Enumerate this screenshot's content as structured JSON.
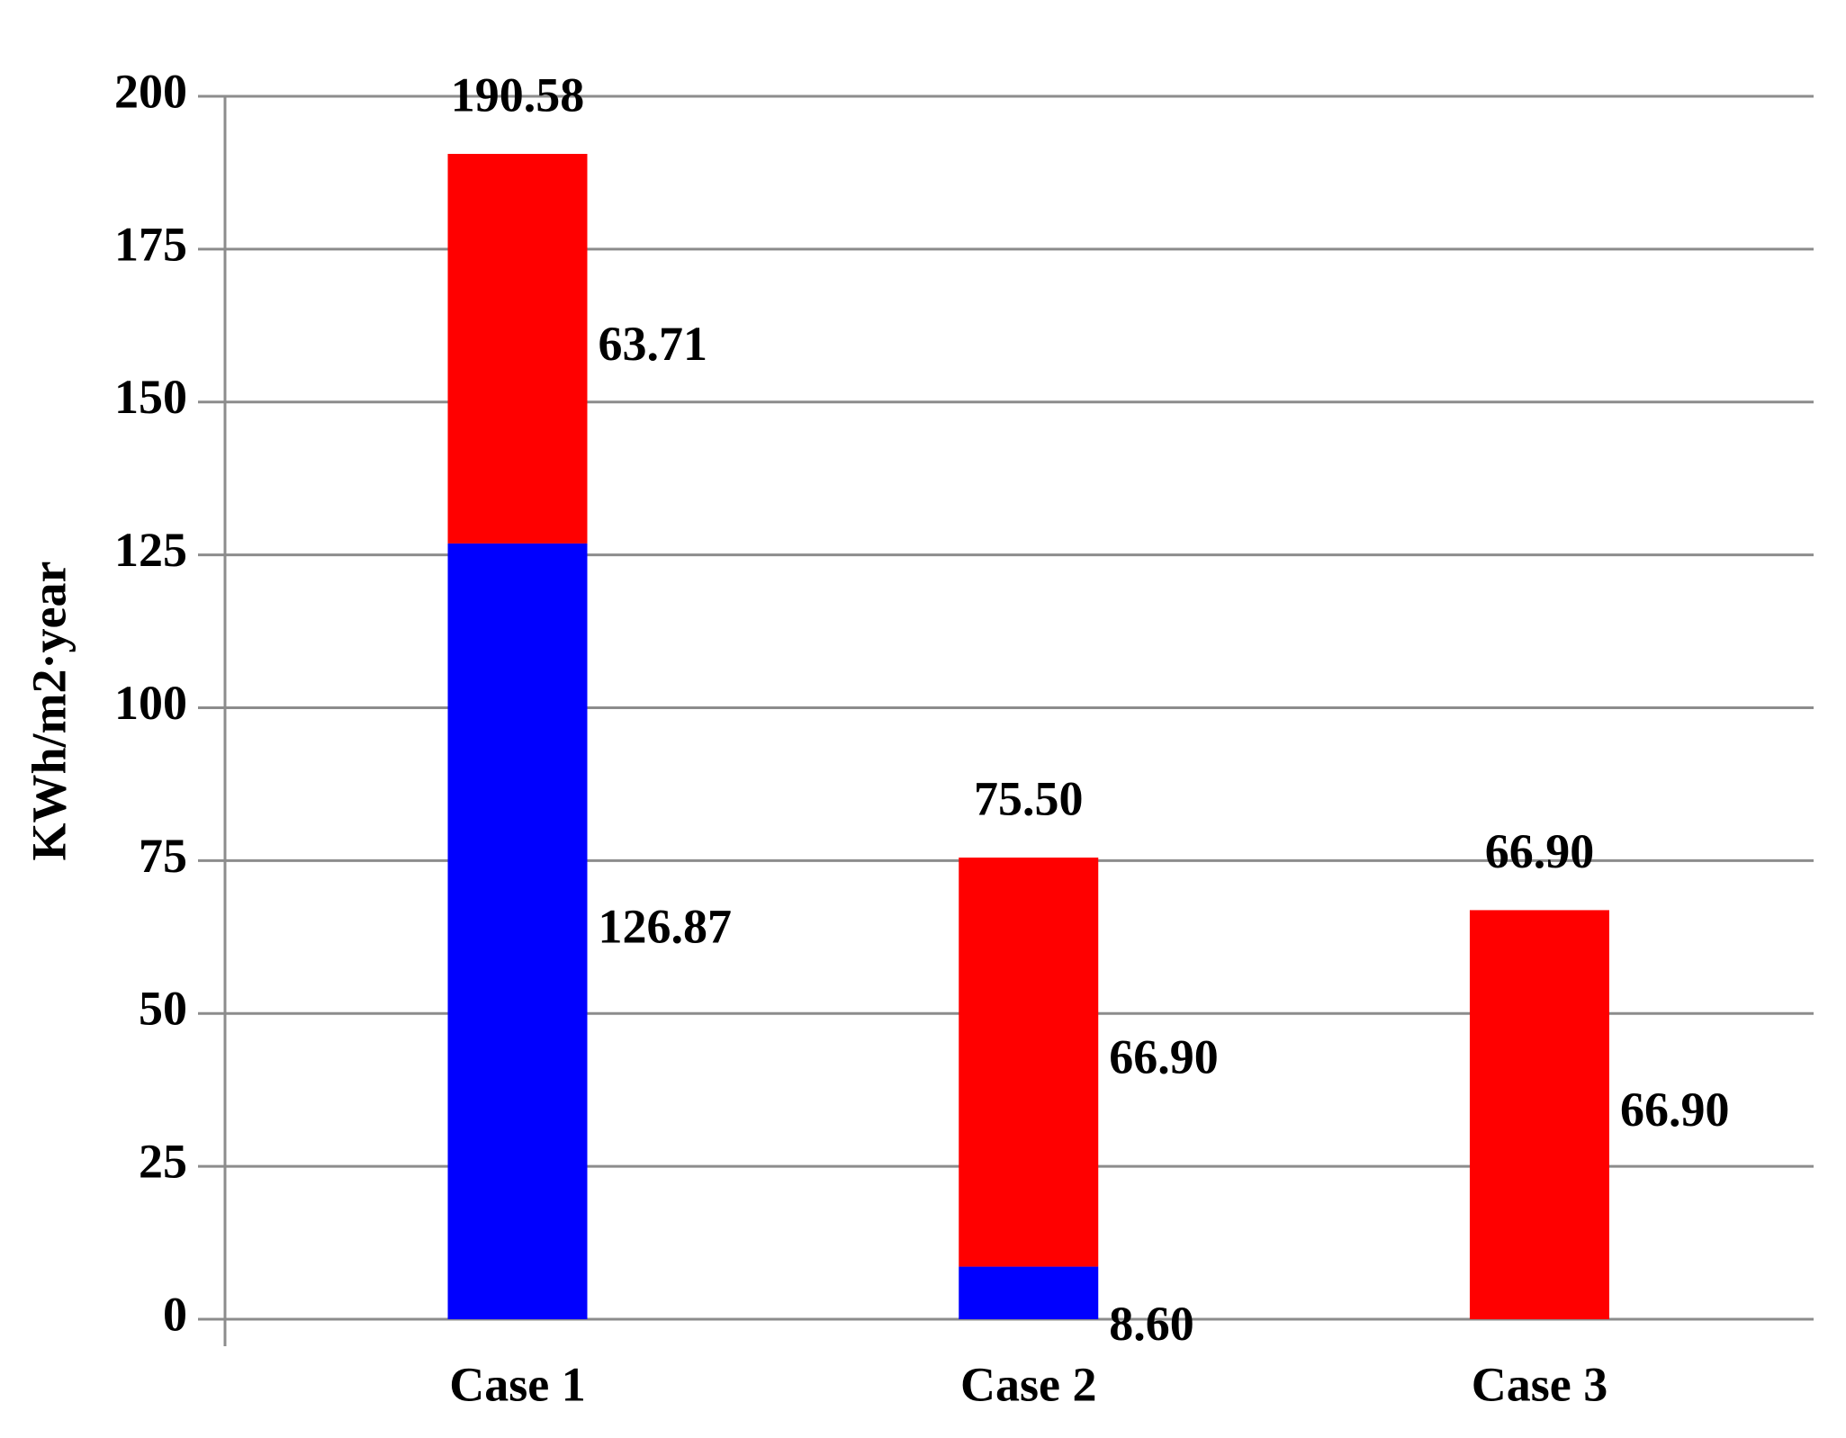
{
  "chart_data": {
    "type": "stacked_bar",
    "y_label": "KWh/m2·year",
    "categories": [
      "Case 1",
      "Case 2",
      "Case 3"
    ],
    "series": [
      {
        "color": "#0000ff",
        "values": [
          126.87,
          8.6,
          null
        ],
        "value_labels": [
          "126.87",
          "8.60",
          null
        ]
      },
      {
        "color": "#ff0000",
        "values": [
          63.71,
          66.9,
          66.9
        ],
        "value_labels": [
          "63.71",
          "66.90",
          "66.90"
        ]
      }
    ],
    "totals": [
      190.58,
      75.5,
      66.9
    ],
    "total_labels": [
      "190.58",
      "75.50",
      "66.90"
    ],
    "ylim": [
      0,
      200
    ],
    "yticks": [
      0,
      25,
      50,
      75,
      100,
      125,
      150,
      175,
      200
    ],
    "grid": true
  }
}
